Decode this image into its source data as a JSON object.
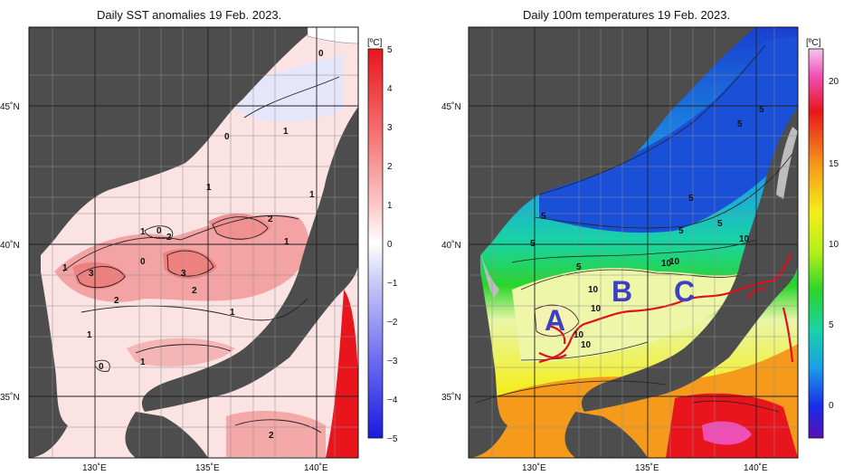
{
  "left": {
    "title": "Daily SST anomalies 19 Feb. 2023.",
    "unit": "[ºC]",
    "colorbar_ticks": [
      "5",
      "4",
      "3",
      "2",
      "1",
      "0",
      "−1",
      "−2",
      "−3",
      "−4",
      "−5"
    ],
    "lat_labels": [
      "45˚N",
      "40˚N",
      "35˚N"
    ],
    "lon_labels": [
      "130˚E",
      "135˚E",
      "140˚E"
    ],
    "contour_labels": [
      "0",
      "0",
      "1",
      "1",
      "1",
      "1",
      "0",
      "2",
      "1",
      "2",
      "1",
      "0",
      "3",
      "3",
      "2",
      "2",
      "1",
      "1",
      "0",
      "1",
      "2"
    ]
  },
  "right": {
    "title": "Daily 100m temperatures 19 Feb. 2023.",
    "unit": "[ºC]",
    "colorbar_ticks": [
      "20",
      "15",
      "10",
      "5",
      "0"
    ],
    "lat_labels": [
      "45˚N",
      "40˚N",
      "35˚N"
    ],
    "lon_labels": [
      "130˚E",
      "135˚E",
      "140˚E"
    ],
    "contour_labels": [
      "5",
      "5",
      "5",
      "5",
      "5",
      "5",
      "5",
      "10",
      "10",
      "5",
      "10",
      "10",
      "10",
      "10",
      "10"
    ],
    "region_labels": [
      "A",
      "B",
      "C"
    ]
  },
  "colors": {
    "land": "#4d4d4d",
    "shelf": "#bdbdbd",
    "front": "#e0101a",
    "region_label": "#3d3fc4"
  }
}
